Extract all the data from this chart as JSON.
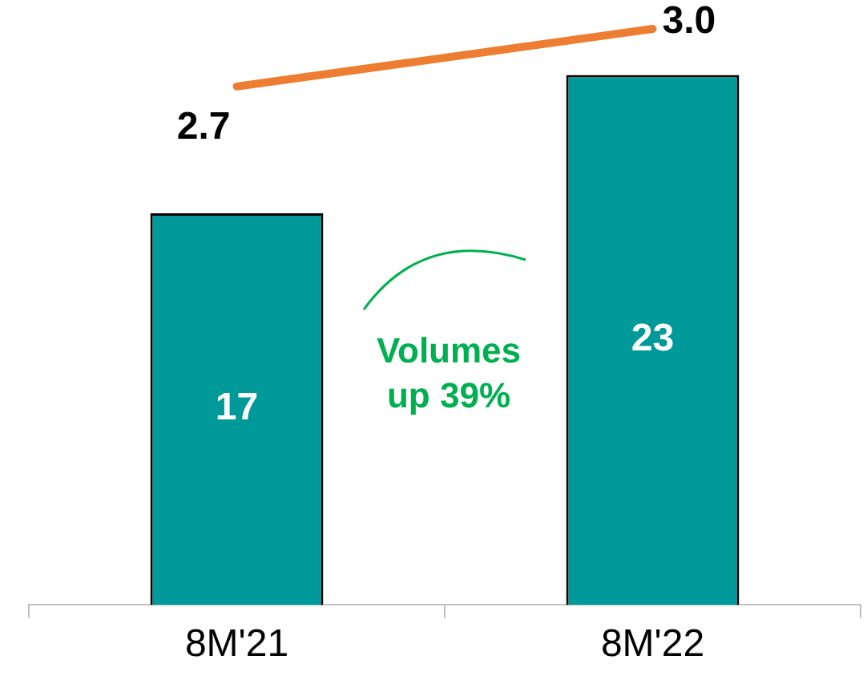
{
  "chart_data": {
    "type": "bar",
    "categories": [
      "8M'21",
      "8M'22"
    ],
    "series": [
      {
        "type": "bar",
        "color": "#009999",
        "values": [
          17,
          23
        ],
        "value_labels": [
          "17",
          "23"
        ]
      },
      {
        "type": "line",
        "axis": "y2",
        "color": "#ed7d31",
        "values": [
          2.7,
          3.0
        ],
        "value_labels": [
          "2.7",
          "3.0"
        ]
      }
    ],
    "legend": false,
    "grid": false,
    "annotations": [
      "Volumes up 39%"
    ]
  }
}
